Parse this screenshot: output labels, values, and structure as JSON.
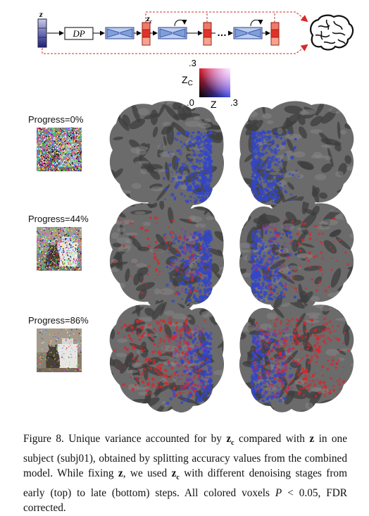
{
  "diagram": {
    "z_label": "z",
    "zc_label": "z",
    "zc_sub": "c",
    "dp_label": "DP",
    "ellipsis": "…"
  },
  "colorkey": {
    "top_tick": ".3",
    "bottom_tick": ".0",
    "right_tick": ".3",
    "y_label": "Z",
    "y_sub": "C",
    "x_label": "Z"
  },
  "rows": [
    {
      "label": "Progress=0%",
      "progress": 0
    },
    {
      "label": "Progress=44%",
      "progress": 0.44
    },
    {
      "label": "Progress=86%",
      "progress": 0.86
    }
  ],
  "caption": {
    "figure": "Figure 8.",
    "text_1": " Unique variance accounted for by ",
    "zc": "z",
    "zc_sub": "c",
    "text_2": " compared with ",
    "z": "z",
    "text_3": " in one subject (subj01), obtained by splitting accuracy values from the combined model. While fixing ",
    "text_4": ", we used ",
    "text_5": " with different denoising stages from early (top) to late (bottom) steps. All colored voxels ",
    "p": "P",
    "text_6": " < 0.05, FDR corrected."
  },
  "colors": {
    "blue": "#3346c8",
    "red": "#d8262a",
    "cortex": "#6b6b6b",
    "dashed": "#d62b2b"
  }
}
